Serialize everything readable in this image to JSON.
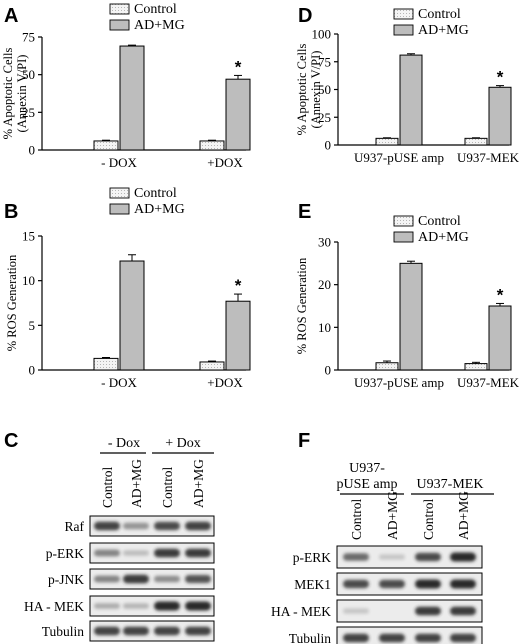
{
  "colors": {
    "control_fill": "#f2f2f2",
    "treated_fill": "#bdbdbd",
    "axis": "#000000",
    "blot_background": "#ececec",
    "band": "#2a2a2a"
  },
  "chart_data": [
    {
      "id": "A",
      "panel_letter": "A",
      "type": "bar",
      "ylabel": "% Apoptotic Cells",
      "ylabel2": "(Annexin V/PI)",
      "categories": [
        "- DOX",
        "+DOX"
      ],
      "ylim": [
        0,
        75
      ],
      "yticks": [
        0,
        25,
        50,
        75
      ],
      "series": [
        {
          "name": "Control",
          "values": [
            6,
            6
          ],
          "errors": [
            0.5,
            0.5
          ]
        },
        {
          "name": "AD+MG",
          "values": [
            69,
            47
          ],
          "errors": [
            0.6,
            2.5
          ]
        }
      ],
      "annotations": [
        {
          "series": 1,
          "category": 1,
          "text": "*"
        }
      ],
      "legend": "top"
    },
    {
      "id": "B",
      "panel_letter": "B",
      "type": "bar",
      "ylabel": "% ROS Generation",
      "categories": [
        "- DOX",
        "+DOX"
      ],
      "ylim": [
        0,
        15
      ],
      "yticks": [
        0,
        5,
        10,
        15
      ],
      "series": [
        {
          "name": "Control",
          "values": [
            1.3,
            0.9
          ],
          "errors": [
            0.1,
            0.1
          ]
        },
        {
          "name": "AD+MG",
          "values": [
            12.2,
            7.7
          ],
          "errors": [
            0.7,
            0.8
          ]
        }
      ],
      "annotations": [
        {
          "series": 1,
          "category": 1,
          "text": "*"
        }
      ],
      "legend": "top"
    },
    {
      "id": "D",
      "panel_letter": "D",
      "type": "bar",
      "ylabel": "% Apoptotic Cells",
      "ylabel2": "(Annexin V/PI)",
      "categories": [
        "U937-pUSE amp",
        "U937-MEK"
      ],
      "ylim": [
        0,
        100
      ],
      "yticks": [
        0,
        25,
        50,
        75,
        100
      ],
      "series": [
        {
          "name": "Control",
          "values": [
            6,
            6
          ],
          "errors": [
            0.5,
            0.5
          ]
        },
        {
          "name": "AD+MG",
          "values": [
            81,
            52
          ],
          "errors": [
            1.2,
            1.5
          ]
        }
      ],
      "annotations": [
        {
          "series": 1,
          "category": 1,
          "text": "*"
        }
      ],
      "legend": "top"
    },
    {
      "id": "E",
      "panel_letter": "E",
      "type": "bar",
      "ylabel": "% ROS Generation",
      "categories": [
        "U937-pUSE amp",
        "U937-MEK"
      ],
      "ylim": [
        0,
        30
      ],
      "yticks": [
        0,
        10,
        20,
        30
      ],
      "series": [
        {
          "name": "Control",
          "values": [
            1.7,
            1.5
          ],
          "errors": [
            0.4,
            0.3
          ]
        },
        {
          "name": "AD+MG",
          "values": [
            25,
            15
          ],
          "errors": [
            0.5,
            0.6
          ]
        }
      ],
      "annotations": [
        {
          "series": 1,
          "category": 1,
          "text": "*"
        }
      ],
      "legend": "top"
    }
  ],
  "blots": [
    {
      "id": "C",
      "panel_letter": "C",
      "group_labels": [
        "- Dox",
        "+ Dox"
      ],
      "lanes": [
        "Control",
        "AD+MG",
        "Control",
        "AD+MG"
      ],
      "rows": [
        {
          "label": "Raf",
          "bands": [
            0.85,
            0.35,
            0.8,
            0.85
          ]
        },
        {
          "label": "p-ERK",
          "bands": [
            0.45,
            0.1,
            0.9,
            0.9
          ]
        },
        {
          "label": "p-JNK",
          "bands": [
            0.45,
            0.9,
            0.4,
            0.75
          ]
        },
        {
          "label": "HA - MEK",
          "bands": [
            0.2,
            0.15,
            1.0,
            1.0
          ]
        },
        {
          "label": "Tubulin",
          "bands": [
            0.85,
            0.85,
            0.85,
            0.85
          ]
        }
      ]
    },
    {
      "id": "F",
      "panel_letter": "F",
      "group_labels": [
        "U937-",
        "pUSE amp",
        "U937-MEK"
      ],
      "lanes": [
        "Control",
        "AD+MG",
        "Control",
        "AD+MG"
      ],
      "rows": [
        {
          "label": "p-ERK",
          "bands": [
            0.6,
            0.05,
            0.8,
            1.0
          ]
        },
        {
          "label": "MEK1",
          "bands": [
            0.8,
            0.8,
            1.0,
            1.0
          ]
        },
        {
          "label": "HA - MEK",
          "bands": [
            0.05,
            0.0,
            0.9,
            0.9
          ]
        },
        {
          "label": "Tubulin",
          "bands": [
            0.85,
            0.85,
            0.85,
            0.85
          ]
        }
      ]
    }
  ]
}
